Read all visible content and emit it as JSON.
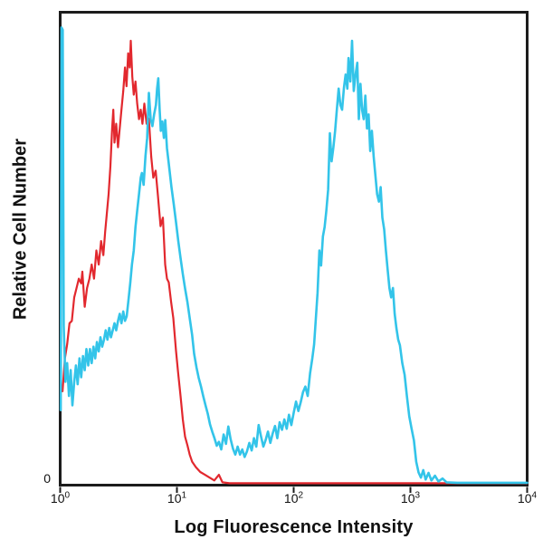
{
  "figure": {
    "background": "#ffffff",
    "border_color": "#1c1c1c",
    "tick_color": "#1c1c1c",
    "text_color": "#111111"
  },
  "chart_data": {
    "type": "line",
    "subtype": "flow-cytometry-histogram-overlay",
    "title": "",
    "xlabel": "Log Fluorescence Intensity",
    "ylabel": "Relative Cell Number",
    "x_scale": "log10",
    "x_decades": [
      0,
      4
    ],
    "x_ticks": [
      {
        "base": "10",
        "exp": "0"
      },
      {
        "base": "10",
        "exp": "1"
      },
      {
        "base": "10",
        "exp": "2"
      },
      {
        "base": "10",
        "exp": "3"
      },
      {
        "base": "10",
        "exp": "4"
      }
    ],
    "y_axis": {
      "min_label": "0",
      "range": [
        0,
        1
      ],
      "ticks": [
        "0"
      ]
    },
    "grid": false,
    "legend": "none",
    "series": [
      {
        "name": "red-trace",
        "color": "#e2282e",
        "stroke_width": 2.2,
        "points": [
          [
            0.02,
            0.2
          ],
          [
            0.04,
            0.27
          ],
          [
            0.06,
            0.3
          ],
          [
            0.08,
            0.345
          ],
          [
            0.1,
            0.35
          ],
          [
            0.12,
            0.4
          ],
          [
            0.14,
            0.42
          ],
          [
            0.16,
            0.44
          ],
          [
            0.18,
            0.43
          ],
          [
            0.19,
            0.455
          ],
          [
            0.21,
            0.38
          ],
          [
            0.23,
            0.42
          ],
          [
            0.25,
            0.44
          ],
          [
            0.27,
            0.47
          ],
          [
            0.29,
            0.44
          ],
          [
            0.31,
            0.5
          ],
          [
            0.33,
            0.47
          ],
          [
            0.35,
            0.52
          ],
          [
            0.37,
            0.49
          ],
          [
            0.385,
            0.54
          ],
          [
            0.4,
            0.58
          ],
          [
            0.415,
            0.62
          ],
          [
            0.43,
            0.68
          ],
          [
            0.445,
            0.76
          ],
          [
            0.455,
            0.8
          ],
          [
            0.465,
            0.73
          ],
          [
            0.48,
            0.77
          ],
          [
            0.495,
            0.72
          ],
          [
            0.51,
            0.76
          ],
          [
            0.525,
            0.8
          ],
          [
            0.54,
            0.84
          ],
          [
            0.555,
            0.89
          ],
          [
            0.568,
            0.85
          ],
          [
            0.582,
            0.92
          ],
          [
            0.595,
            0.89
          ],
          [
            0.605,
            0.947
          ],
          [
            0.618,
            0.87
          ],
          [
            0.63,
            0.832
          ],
          [
            0.645,
            0.86
          ],
          [
            0.66,
            0.813
          ],
          [
            0.675,
            0.78
          ],
          [
            0.69,
            0.8
          ],
          [
            0.705,
            0.77
          ],
          [
            0.721,
            0.813
          ],
          [
            0.74,
            0.77
          ],
          [
            0.76,
            0.781
          ],
          [
            0.78,
            0.7
          ],
          [
            0.798,
            0.655
          ],
          [
            0.818,
            0.67
          ],
          [
            0.837,
            0.617
          ],
          [
            0.86,
            0.552
          ],
          [
            0.88,
            0.57
          ],
          [
            0.899,
            0.47
          ],
          [
            0.915,
            0.44
          ],
          [
            0.93,
            0.432
          ],
          [
            0.95,
            0.39
          ],
          [
            0.969,
            0.356
          ],
          [
            0.992,
            0.286
          ],
          [
            1.01,
            0.24
          ],
          [
            1.031,
            0.19
          ],
          [
            1.05,
            0.14
          ],
          [
            1.07,
            0.103
          ],
          [
            1.09,
            0.085
          ],
          [
            1.109,
            0.065
          ],
          [
            1.13,
            0.05
          ],
          [
            1.163,
            0.038
          ],
          [
            1.2,
            0.028
          ],
          [
            1.24,
            0.022
          ],
          [
            1.28,
            0.016
          ],
          [
            1.32,
            0.01
          ],
          [
            1.36,
            0.022
          ],
          [
            1.39,
            0.006
          ],
          [
            1.45,
            0.004
          ],
          [
            2.0,
            0.004
          ],
          [
            2.5,
            0.004
          ],
          [
            3.0,
            0.004
          ],
          [
            3.5,
            0.004
          ],
          [
            4.0,
            0.004
          ]
        ]
      },
      {
        "name": "cyan-trace",
        "color": "#33c4e9",
        "stroke_width": 2.6,
        "points": [
          [
            0.005,
            0.16
          ],
          [
            0.012,
            0.975
          ],
          [
            0.022,
            0.97
          ],
          [
            0.03,
            0.34
          ],
          [
            0.045,
            0.22
          ],
          [
            0.06,
            0.26
          ],
          [
            0.075,
            0.19
          ],
          [
            0.09,
            0.245
          ],
          [
            0.105,
            0.17
          ],
          [
            0.12,
            0.22
          ],
          [
            0.135,
            0.255
          ],
          [
            0.15,
            0.215
          ],
          [
            0.165,
            0.27
          ],
          [
            0.18,
            0.23
          ],
          [
            0.195,
            0.275
          ],
          [
            0.21,
            0.245
          ],
          [
            0.225,
            0.29
          ],
          [
            0.24,
            0.255
          ],
          [
            0.255,
            0.29
          ],
          [
            0.27,
            0.26
          ],
          [
            0.285,
            0.295
          ],
          [
            0.3,
            0.27
          ],
          [
            0.315,
            0.305
          ],
          [
            0.33,
            0.285
          ],
          [
            0.345,
            0.315
          ],
          [
            0.36,
            0.295
          ],
          [
            0.375,
            0.31
          ],
          [
            0.39,
            0.33
          ],
          [
            0.405,
            0.31
          ],
          [
            0.42,
            0.335
          ],
          [
            0.435,
            0.315
          ],
          [
            0.45,
            0.33
          ],
          [
            0.465,
            0.345
          ],
          [
            0.48,
            0.33
          ],
          [
            0.495,
            0.35
          ],
          [
            0.51,
            0.365
          ],
          [
            0.525,
            0.345
          ],
          [
            0.54,
            0.37
          ],
          [
            0.555,
            0.35
          ],
          [
            0.57,
            0.36
          ],
          [
            0.585,
            0.395
          ],
          [
            0.6,
            0.43
          ],
          [
            0.615,
            0.47
          ],
          [
            0.63,
            0.5
          ],
          [
            0.645,
            0.55
          ],
          [
            0.66,
            0.585
          ],
          [
            0.675,
            0.62
          ],
          [
            0.69,
            0.655
          ],
          [
            0.7,
            0.665
          ],
          [
            0.715,
            0.64
          ],
          [
            0.73,
            0.7
          ],
          [
            0.745,
            0.74
          ],
          [
            0.76,
            0.836
          ],
          [
            0.775,
            0.78
          ],
          [
            0.79,
            0.765
          ],
          [
            0.805,
            0.79
          ],
          [
            0.82,
            0.81
          ],
          [
            0.83,
            0.845
          ],
          [
            0.84,
            0.867
          ],
          [
            0.852,
            0.8
          ],
          [
            0.862,
            0.755
          ],
          [
            0.875,
            0.775
          ],
          [
            0.888,
            0.74
          ],
          [
            0.9,
            0.778
          ],
          [
            0.915,
            0.718
          ],
          [
            0.93,
            0.685
          ],
          [
            0.953,
            0.636
          ],
          [
            0.972,
            0.6
          ],
          [
            0.992,
            0.56
          ],
          [
            1.012,
            0.52
          ],
          [
            1.031,
            0.484
          ],
          [
            1.05,
            0.45
          ],
          [
            1.07,
            0.419
          ],
          [
            1.09,
            0.39
          ],
          [
            1.109,
            0.356
          ],
          [
            1.13,
            0.32
          ],
          [
            1.147,
            0.28
          ],
          [
            1.168,
            0.25
          ],
          [
            1.186,
            0.229
          ],
          [
            1.206,
            0.21
          ],
          [
            1.225,
            0.19
          ],
          [
            1.245,
            0.17
          ],
          [
            1.264,
            0.152
          ],
          [
            1.283,
            0.13
          ],
          [
            1.302,
            0.114
          ],
          [
            1.322,
            0.1
          ],
          [
            1.341,
            0.084
          ],
          [
            1.36,
            0.092
          ],
          [
            1.38,
            0.076
          ],
          [
            1.4,
            0.108
          ],
          [
            1.42,
            0.088
          ],
          [
            1.44,
            0.125
          ],
          [
            1.46,
            0.098
          ],
          [
            1.48,
            0.078
          ],
          [
            1.5,
            0.065
          ],
          [
            1.52,
            0.082
          ],
          [
            1.54,
            0.065
          ],
          [
            1.56,
            0.076
          ],
          [
            1.58,
            0.06
          ],
          [
            1.6,
            0.072
          ],
          [
            1.62,
            0.09
          ],
          [
            1.64,
            0.074
          ],
          [
            1.66,
            0.1
          ],
          [
            1.68,
            0.082
          ],
          [
            1.7,
            0.128
          ],
          [
            1.72,
            0.104
          ],
          [
            1.74,
            0.082
          ],
          [
            1.76,
            0.096
          ],
          [
            1.78,
            0.114
          ],
          [
            1.8,
            0.09
          ],
          [
            1.82,
            0.11
          ],
          [
            1.84,
            0.126
          ],
          [
            1.86,
            0.1
          ],
          [
            1.88,
            0.134
          ],
          [
            1.9,
            0.118
          ],
          [
            1.92,
            0.14
          ],
          [
            1.94,
            0.12
          ],
          [
            1.96,
            0.15
          ],
          [
            1.98,
            0.128
          ],
          [
            2.0,
            0.154
          ],
          [
            2.02,
            0.178
          ],
          [
            2.04,
            0.158
          ],
          [
            2.06,
            0.176
          ],
          [
            2.08,
            0.198
          ],
          [
            2.1,
            0.21
          ],
          [
            2.12,
            0.19
          ],
          [
            2.14,
            0.238
          ],
          [
            2.16,
            0.27
          ],
          [
            2.175,
            0.3
          ],
          [
            2.19,
            0.355
          ],
          [
            2.205,
            0.41
          ],
          [
            2.22,
            0.5
          ],
          [
            2.235,
            0.468
          ],
          [
            2.25,
            0.53
          ],
          [
            2.265,
            0.55
          ],
          [
            2.28,
            0.585
          ],
          [
            2.295,
            0.63
          ],
          [
            2.31,
            0.75
          ],
          [
            2.325,
            0.69
          ],
          [
            2.34,
            0.72
          ],
          [
            2.355,
            0.755
          ],
          [
            2.37,
            0.8
          ],
          [
            2.385,
            0.845
          ],
          [
            2.4,
            0.81
          ],
          [
            2.415,
            0.8
          ],
          [
            2.43,
            0.846
          ],
          [
            2.445,
            0.875
          ],
          [
            2.46,
            0.845
          ],
          [
            2.47,
            0.91
          ],
          [
            2.485,
            0.86
          ],
          [
            2.5,
            0.947
          ],
          [
            2.515,
            0.84
          ],
          [
            2.53,
            0.875
          ],
          [
            2.545,
            0.9
          ],
          [
            2.558,
            0.78
          ],
          [
            2.572,
            0.855
          ],
          [
            2.586,
            0.8
          ],
          [
            2.6,
            0.78
          ],
          [
            2.614,
            0.83
          ],
          [
            2.628,
            0.76
          ],
          [
            2.642,
            0.79
          ],
          [
            2.656,
            0.712
          ],
          [
            2.67,
            0.755
          ],
          [
            2.685,
            0.7
          ],
          [
            2.7,
            0.66
          ],
          [
            2.715,
            0.62
          ],
          [
            2.73,
            0.604
          ],
          [
            2.745,
            0.635
          ],
          [
            2.76,
            0.57
          ],
          [
            2.775,
            0.545
          ],
          [
            2.79,
            0.5
          ],
          [
            2.805,
            0.46
          ],
          [
            2.82,
            0.42
          ],
          [
            2.835,
            0.4
          ],
          [
            2.85,
            0.42
          ],
          [
            2.865,
            0.365
          ],
          [
            2.88,
            0.335
          ],
          [
            2.895,
            0.31
          ],
          [
            2.91,
            0.298
          ],
          [
            2.93,
            0.26
          ],
          [
            2.95,
            0.235
          ],
          [
            2.97,
            0.19
          ],
          [
            2.99,
            0.147
          ],
          [
            3.01,
            0.12
          ],
          [
            3.03,
            0.095
          ],
          [
            3.05,
            0.05
          ],
          [
            3.07,
            0.027
          ],
          [
            3.09,
            0.016
          ],
          [
            3.11,
            0.032
          ],
          [
            3.13,
            0.012
          ],
          [
            3.155,
            0.026
          ],
          [
            3.18,
            0.01
          ],
          [
            3.21,
            0.02
          ],
          [
            3.24,
            0.008
          ],
          [
            3.275,
            0.014
          ],
          [
            3.31,
            0.006
          ],
          [
            3.4,
            0.005
          ],
          [
            3.6,
            0.005
          ],
          [
            3.8,
            0.005
          ],
          [
            4.0,
            0.005
          ]
        ]
      }
    ]
  }
}
